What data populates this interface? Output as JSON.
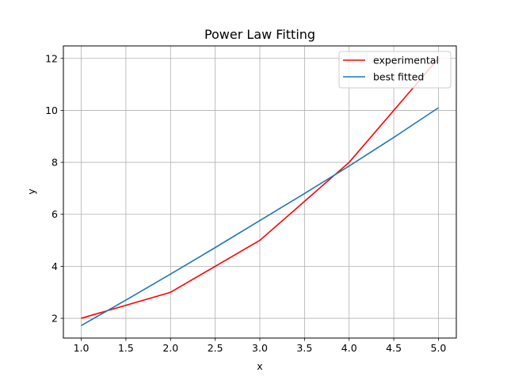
{
  "chart_data": {
    "type": "line",
    "title": "Power Law Fitting",
    "xlabel": "x",
    "ylabel": "y",
    "xlim": [
      0.8,
      5.2
    ],
    "ylim": [
      1.24,
      12.48
    ],
    "xticks": [
      "1.0",
      "1.5",
      "2.0",
      "2.5",
      "3.0",
      "3.5",
      "4.0",
      "4.5",
      "5.0"
    ],
    "yticks": [
      "2",
      "4",
      "6",
      "8",
      "10",
      "12"
    ],
    "grid": true,
    "legend_position": "top-right",
    "series": [
      {
        "name": "experimental",
        "color": "#ff0000",
        "x": [
          1,
          2,
          3,
          4,
          5
        ],
        "y": [
          2,
          3,
          5,
          8,
          12
        ]
      },
      {
        "name": "best fitted",
        "color": "#1f77b4",
        "x": [
          1,
          1.5,
          2,
          2.5,
          3,
          3.5,
          4,
          4.5,
          5
        ],
        "y": [
          1.72,
          2.7,
          3.7,
          4.72,
          5.76,
          6.8,
          7.86,
          8.96,
          10.1
        ]
      }
    ]
  }
}
